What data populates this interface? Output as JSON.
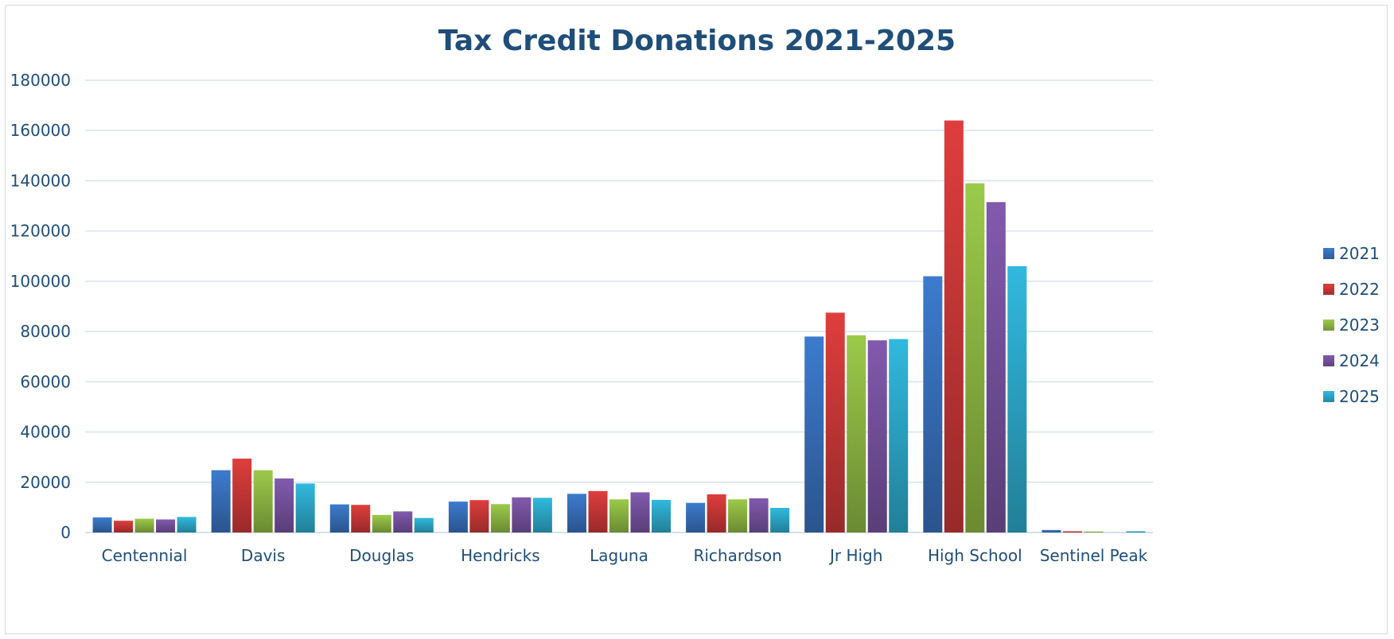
{
  "chart_data": {
    "type": "bar",
    "title": "Tax Credit Donations 2021-2025",
    "xlabel": "",
    "ylabel": "",
    "ylim": [
      0,
      180000
    ],
    "yticks": [
      0,
      20000,
      40000,
      60000,
      80000,
      100000,
      120000,
      140000,
      160000,
      180000
    ],
    "grid": true,
    "legend_position": "right",
    "categories": [
      "Centennial",
      "Davis",
      "Douglas",
      "Hendricks",
      "Laguna",
      "Richardson",
      "Jr High",
      "High School",
      "Sentinel Peak"
    ],
    "series": [
      {
        "name": "2021",
        "color": "#3a75c4",
        "values": [
          6000,
          24800,
          11200,
          12300,
          15400,
          11800,
          78000,
          102000,
          1000
        ]
      },
      {
        "name": "2022",
        "color": "#d33b3a",
        "values": [
          4700,
          29400,
          11000,
          12900,
          16500,
          15200,
          87500,
          164000,
          500
        ]
      },
      {
        "name": "2023",
        "color": "#94c046",
        "values": [
          5500,
          24800,
          7000,
          11300,
          13200,
          13200,
          78500,
          139000,
          400
        ]
      },
      {
        "name": "2024",
        "color": "#7c56a6",
        "values": [
          5200,
          21500,
          8400,
          14000,
          16000,
          13600,
          76500,
          131500,
          0
        ]
      },
      {
        "name": "2025",
        "color": "#2fb0d3",
        "values": [
          6200,
          19500,
          5800,
          13800,
          13000,
          9800,
          77000,
          106000,
          500
        ]
      }
    ]
  }
}
